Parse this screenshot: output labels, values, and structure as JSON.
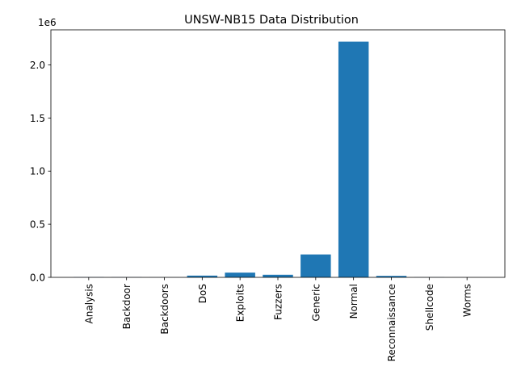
{
  "chart_data": {
    "type": "bar",
    "title": "UNSW-NB15 Data Distribution",
    "xlabel": "",
    "ylabel": "",
    "categories": [
      "Analysis",
      "Backdoor",
      "Backdoors",
      "DoS",
      "Exploits",
      "Fuzzers",
      "Generic",
      "Normal",
      "Reconnaissance",
      "Shellcode",
      "Worms"
    ],
    "values": [
      2184,
      1795,
      534,
      16353,
      44525,
      24246,
      215481,
      2218761,
      13987,
      1511,
      174
    ],
    "ylim": [
      0,
      2329699
    ],
    "yticks": [
      0.0,
      0.5,
      1.0,
      1.5,
      2.0
    ],
    "ytick_labels": [
      "0.0",
      "0.5",
      "1.0",
      "1.5",
      "2.0"
    ],
    "y_scale_label": "1e6",
    "bar_color": "#1f77b4",
    "grid": false,
    "legend": "none"
  }
}
